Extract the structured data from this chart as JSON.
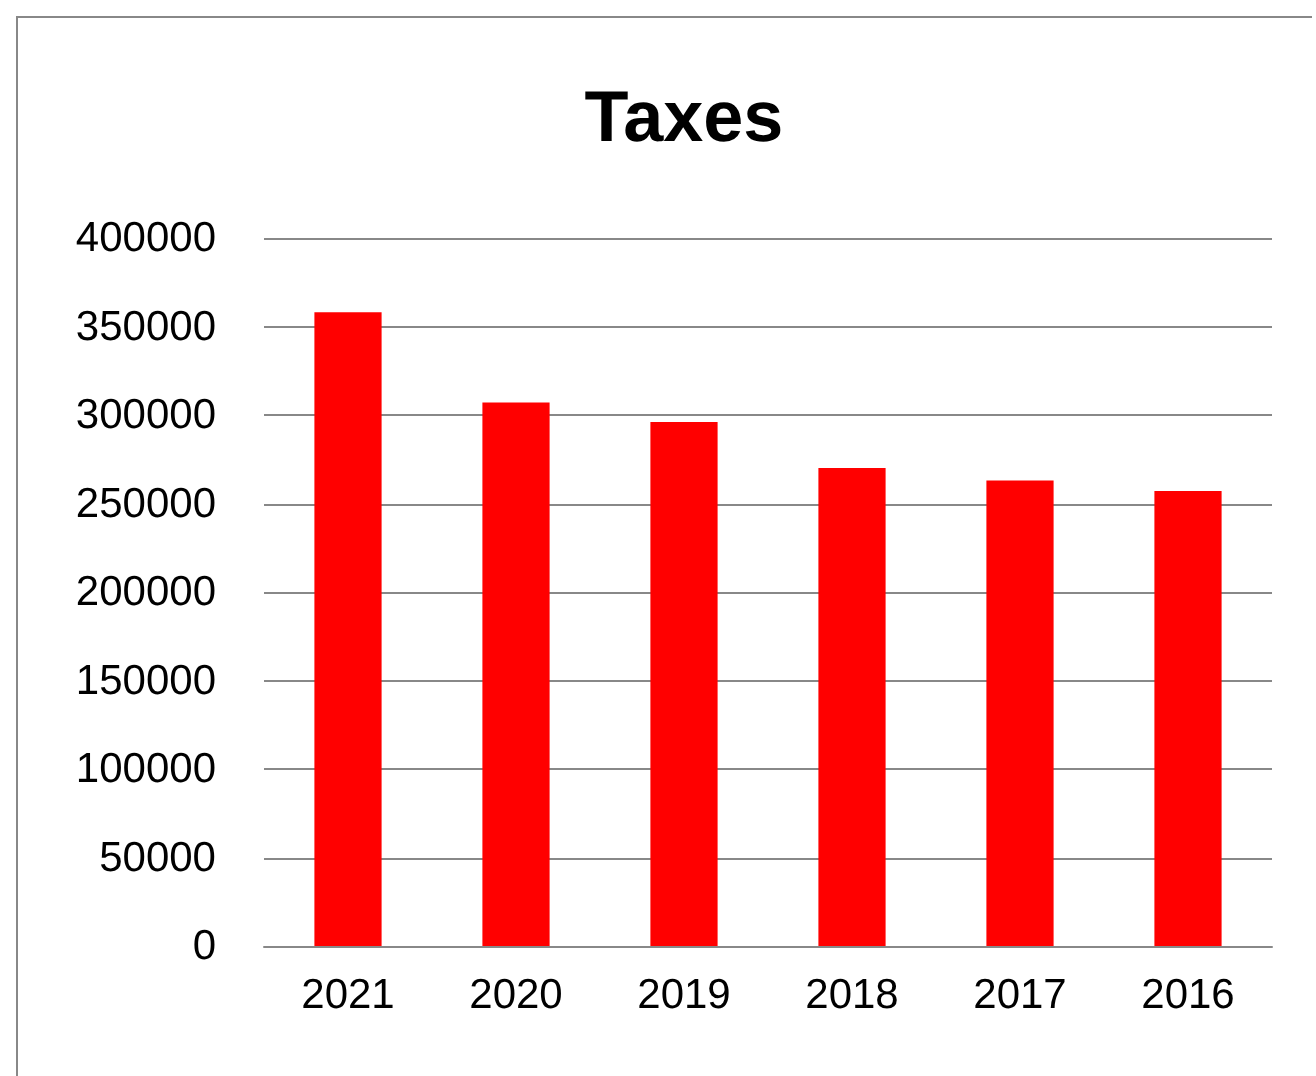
{
  "chart_data": {
    "type": "bar",
    "title": "Taxes",
    "categories": [
      "2021",
      "2020",
      "2019",
      "2018",
      "2017",
      "2016"
    ],
    "values": [
      358000,
      307000,
      296000,
      270000,
      263000,
      257000
    ],
    "color": "#ff0000",
    "ylim": [
      0,
      400000
    ],
    "yticks": [
      0,
      50000,
      100000,
      150000,
      200000,
      250000,
      300000,
      350000,
      400000
    ],
    "grid": "y"
  }
}
